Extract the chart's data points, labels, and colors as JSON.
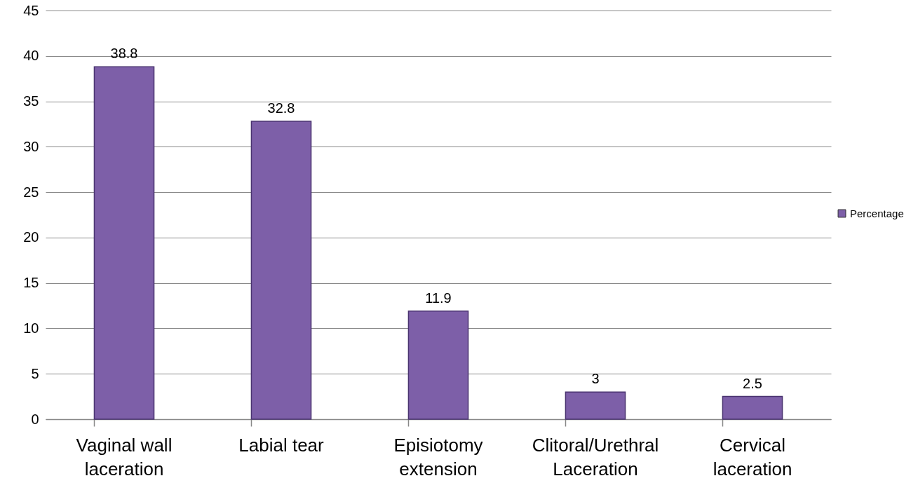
{
  "chart_data": {
    "type": "bar",
    "categories": [
      "Vaginal wall laceration",
      "Labial tear",
      "Episiotomy extension",
      "Clitoral/Urethral Laceration",
      "Cervical laceration"
    ],
    "series": [
      {
        "name": "Percentage",
        "color": "#7d5fa8",
        "values": [
          38.8,
          32.8,
          11.9,
          3,
          2.5
        ]
      }
    ],
    "ylim": [
      0,
      45
    ],
    "yticks": [
      0,
      5,
      10,
      15,
      20,
      25,
      30,
      35,
      40,
      45
    ],
    "grid": "y",
    "legend": "right",
    "data_labels": true
  }
}
